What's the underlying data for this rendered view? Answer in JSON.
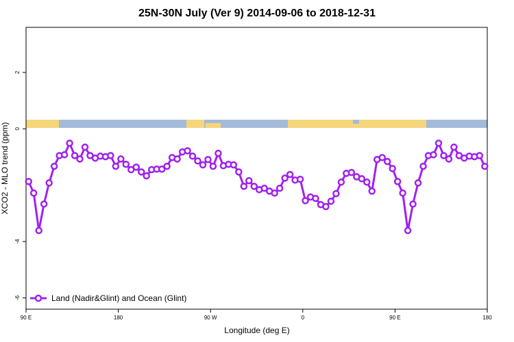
{
  "chart_data": {
    "type": "line",
    "title": "25N-30N July (Ver 9)   2014-09-06 to 2018-12-31",
    "x_label": "Longitude (deg E)",
    "y_label": "XCO2 - MLO trend (ppm)",
    "x": [
      92.5,
      97.5,
      102.5,
      107.5,
      112.5,
      117.5,
      122.5,
      127.5,
      132.5,
      137.5,
      142.5,
      147.5,
      152.5,
      157.5,
      162.5,
      167.5,
      172.5,
      177.5,
      182.5,
      187.5,
      192.5,
      197.5,
      202.5,
      207.5,
      212.5,
      217.5,
      222.5,
      227.5,
      232.5,
      237.5,
      242.5,
      247.5,
      252.5,
      257.5,
      262.5,
      267.5,
      272.5,
      277.5,
      282.5,
      287.5,
      292.5,
      297.5,
      302.5,
      307.5,
      312.5,
      317.5,
      322.5,
      327.5,
      332.5,
      337.5,
      342.5,
      347.5,
      352.5,
      357.5,
      362.5,
      367.5,
      372.5,
      377.5,
      382.5,
      387.5,
      392.5,
      397.5,
      402.5,
      407.5,
      412.5,
      417.5,
      422.5,
      427.5,
      432.5,
      437.5,
      442.5,
      447.5,
      452.5,
      457.5,
      462.5,
      467.5,
      472.5,
      477.5,
      482.5,
      487.5,
      492.5,
      497.5,
      502.5,
      507.5,
      512.5,
      517.5,
      522.5,
      527.5,
      532.5,
      537.5
    ],
    "series": [
      {
        "name": "Land (Nadir&Glint) and Ocean (Glint)",
        "color": "#a020f0",
        "values": [
          -1.87,
          -2.28,
          -3.61,
          -2.67,
          -1.92,
          -1.33,
          -0.95,
          -0.92,
          -0.51,
          -0.95,
          -1.07,
          -0.65,
          -0.95,
          -1.04,
          -0.97,
          -0.99,
          -0.95,
          -1.33,
          -1.07,
          -1.26,
          -1.45,
          -1.36,
          -1.53,
          -1.67,
          -1.45,
          -1.43,
          -1.43,
          -1.33,
          -1.02,
          -1.07,
          -0.82,
          -0.78,
          -0.97,
          -1.14,
          -1.28,
          -1.09,
          -1.33,
          -0.87,
          -1.31,
          -1.26,
          -1.28,
          -1.53,
          -2.04,
          -1.84,
          -2.04,
          -2.16,
          -2.11,
          -2.21,
          -2.28,
          -2.11,
          -1.75,
          -1.62,
          -1.82,
          -1.79,
          -2.55,
          -2.42,
          -2.47,
          -2.69,
          -2.76,
          -2.57,
          -2.3,
          -1.89,
          -1.58,
          -1.55,
          -1.7,
          -1.77,
          -1.89,
          -2.21,
          -1.09,
          -1.02,
          -1.16,
          -1.41,
          -1.87,
          -2.28,
          -3.61,
          -2.67,
          -1.92,
          -1.33,
          -0.95,
          -0.92,
          -0.51,
          -0.95,
          -1.07,
          -0.65,
          -0.95,
          -1.04,
          -0.97,
          -0.99,
          -0.95,
          -1.33
        ]
      }
    ],
    "xlim": [
      90,
      540
    ],
    "xticks": [
      {
        "value": 90,
        "label": "90 E"
      },
      180,
      {
        "value": 270,
        "label": "90 W"
      },
      {
        "value": 360,
        "label": "0"
      },
      {
        "value": 450,
        "label": "90 E"
      },
      {
        "value": 540,
        "label": "180"
      }
    ],
    "ylim": [
      -6.4,
      3.6
    ],
    "yticks": [
      2,
      0,
      -4,
      -6
    ],
    "legend": "bottom-left",
    "grid": false
  }
}
